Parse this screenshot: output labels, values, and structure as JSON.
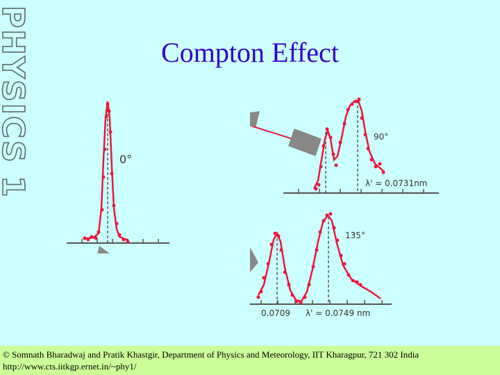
{
  "sidebar": {
    "text": "PHYSICS 1"
  },
  "slide": {
    "title": "Compton Effect"
  },
  "panels": {
    "p0": {
      "angle": "0°"
    },
    "p90": {
      "angle": "90°",
      "lambda": "λ' = 0.0731nm"
    },
    "p135": {
      "angle": "135°",
      "lambda0": "0.0709",
      "lambda": "λ' = 0.0749 nm"
    }
  },
  "colors": {
    "curve": "#e8173c",
    "axis": "#555555",
    "title": "#3300cc",
    "footer_bg": "#ccff99",
    "background": "#ccffff"
  },
  "footer": {
    "line1": "© Somnath Bharadwaj and Pratik Khastgir, Department of Physics and Meteorology, IIT Kharagpur, 721 302 India",
    "line2": "http://www.cts.iitkgp.ernet.in/~phy1/"
  }
}
